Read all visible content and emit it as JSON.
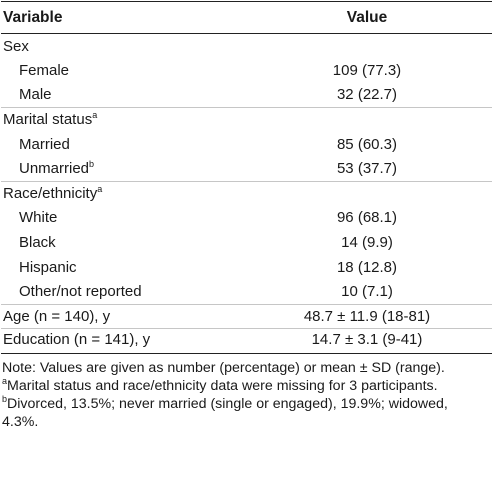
{
  "header": {
    "variable": "Variable",
    "value": "Value"
  },
  "rows": {
    "sex": {
      "label": "Sex"
    },
    "female": {
      "label": "Female",
      "value": "109 (77.3)"
    },
    "male": {
      "label": "Male",
      "value": "32 (22.7)"
    },
    "marital": {
      "label": "Marital status",
      "sup": "a"
    },
    "married": {
      "label": "Married",
      "value": "85 (60.3)"
    },
    "unmarried": {
      "label": "Unmarried",
      "sup": "b",
      "value": "53 (37.7)"
    },
    "race": {
      "label": "Race/ethnicity",
      "sup": "a"
    },
    "white": {
      "label": "White",
      "value": "96 (68.1)"
    },
    "black": {
      "label": "Black",
      "value": "14 (9.9)"
    },
    "hispanic": {
      "label": "Hispanic",
      "value": "18 (12.8)"
    },
    "other": {
      "label": "Other/not reported",
      "value": "10 (7.1)"
    },
    "age": {
      "label": "Age (n = 140), y",
      "value": "48.7 ± 11.9 (18-81)"
    },
    "education": {
      "label": "Education (n = 141), y",
      "value": "14.7 ± 3.1 (9-41)"
    }
  },
  "notes": {
    "main": "Note: Values are given as number (percentage) or mean ± SD (range).",
    "a_marker": "a",
    "a_text": "Marital status and race/ethnicity data were missing for 3 participants.",
    "b_marker": "b",
    "b_text": "Divorced, 13.5%; never married (single or engaged), 19.9%; widowed, 4.3%."
  }
}
